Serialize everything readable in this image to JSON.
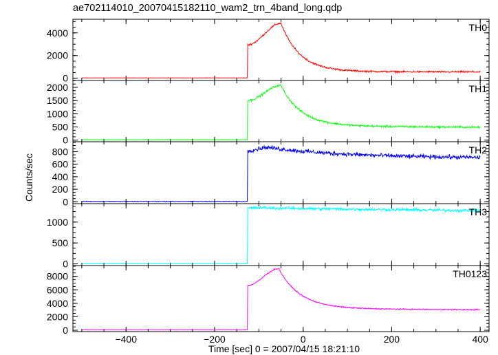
{
  "title": "ae702114010_20070415182110_wam2_trn_4band_long.qdp",
  "chart_data": {
    "type": "line",
    "title": "ae702114010_20070415182110_wam2_trn_4band_long.qdp",
    "xlabel": "Time [sec] 0 = 2007/04/15 18:21:10",
    "ylabel": "Counts/sec",
    "xlim": [
      -520,
      420
    ],
    "x_ticks": [
      -400,
      -200,
      0,
      200,
      400
    ],
    "x_tick_labels": [
      "−400",
      "−200",
      "0",
      "200",
      "400"
    ],
    "grid": false,
    "panels": [
      {
        "label": "TH0",
        "color": "#ff0000",
        "ylim": [
          -200,
          5200
        ],
        "y_ticks": [
          0,
          2000,
          4000
        ],
        "y_tick_labels": [
          "0",
          "2000",
          "4000"
        ],
        "model": {
          "pre": 30,
          "onset": -125,
          "jump": 2950,
          "peak_t": -50,
          "peak": 4850,
          "decay": 42,
          "tail": 580,
          "tail_end": 560,
          "noise": 70
        }
      },
      {
        "label": "TH1",
        "color": "#00ff00",
        "ylim": [
          -60,
          2260
        ],
        "y_ticks": [
          0,
          500,
          1000,
          1500,
          2000
        ],
        "y_tick_labels": [
          "0",
          "500",
          "1000",
          "1500",
          "2000"
        ],
        "model": {
          "pre": 15,
          "onset": -125,
          "jump": 1500,
          "peak_t": -50,
          "peak": 2080,
          "decay": 45,
          "tail": 540,
          "tail_end": 490,
          "noise": 35
        }
      },
      {
        "label": "TH2",
        "color": "#0000ff",
        "ylim": [
          -30,
          960
        ],
        "y_ticks": [
          0,
          200,
          400,
          600,
          800
        ],
        "y_tick_labels": [
          "0",
          "200",
          "400",
          "600",
          "800"
        ],
        "model": {
          "pre": 5,
          "onset": -125,
          "jump": 820,
          "peak_t": -80,
          "peak": 870,
          "decay": 160,
          "tail": 720,
          "tail_end": 700,
          "noise": 30
        }
      },
      {
        "label": "TH3",
        "color": "#00ffff",
        "ylim": [
          -40,
          1440
        ],
        "y_ticks": [
          0,
          500,
          1000
        ],
        "y_tick_labels": [
          "0",
          "500",
          "1000"
        ],
        "model": {
          "pre": 5,
          "onset": -125,
          "jump": 1330,
          "peak_t": -100,
          "peak": 1340,
          "decay": 400,
          "tail": 1290,
          "tail_end": 1260,
          "noise": 35
        }
      },
      {
        "label": "TH0123",
        "color": "#ff00ff",
        "ylim": [
          -200,
          9600
        ],
        "y_ticks": [
          0,
          2000,
          4000,
          6000,
          8000
        ],
        "y_tick_labels": [
          "0",
          "2000",
          "4000",
          "6000",
          "8000"
        ],
        "model": {
          "pre": 50,
          "onset": -125,
          "jump": 6650,
          "peak_t": -55,
          "peak": 9150,
          "decay": 48,
          "tail": 3200,
          "tail_end": 3050,
          "noise": 80
        }
      }
    ]
  }
}
